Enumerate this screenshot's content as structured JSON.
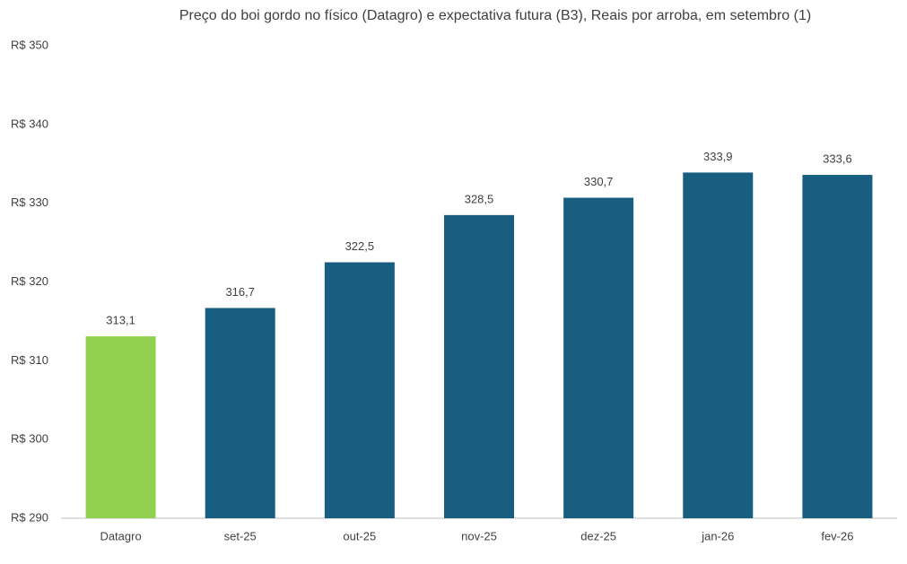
{
  "chart_data": {
    "type": "bar",
    "title": "Preço do boi gordo no físico (Datagro)  e expectativa futura (B3), Reais por arroba, em setembro (1)",
    "categories": [
      "Datagro",
      "set-25",
      "out-25",
      "nov-25",
      "dez-25",
      "jan-26",
      "fev-26"
    ],
    "values": [
      313.1,
      316.7,
      322.5,
      328.5,
      330.7,
      333.9,
      333.6
    ],
    "value_labels": [
      "313,1",
      "316,7",
      "322,5",
      "328,5",
      "330,7",
      "333,9",
      "333,6"
    ],
    "colors": [
      "#92d050",
      "#175e80",
      "#175e80",
      "#175e80",
      "#175e80",
      "#175e80",
      "#175e80"
    ],
    "ylim": [
      290,
      350
    ],
    "yticks": [
      {
        "value": 290,
        "label": "R$ 290"
      },
      {
        "value": 300,
        "label": "R$ 300"
      },
      {
        "value": 310,
        "label": "R$ 310"
      },
      {
        "value": 320,
        "label": "R$ 320"
      },
      {
        "value": 330,
        "label": "R$ 330"
      },
      {
        "value": 340,
        "label": "R$ 340"
      },
      {
        "value": 350,
        "label": "R$ 350"
      }
    ],
    "grid": false
  }
}
